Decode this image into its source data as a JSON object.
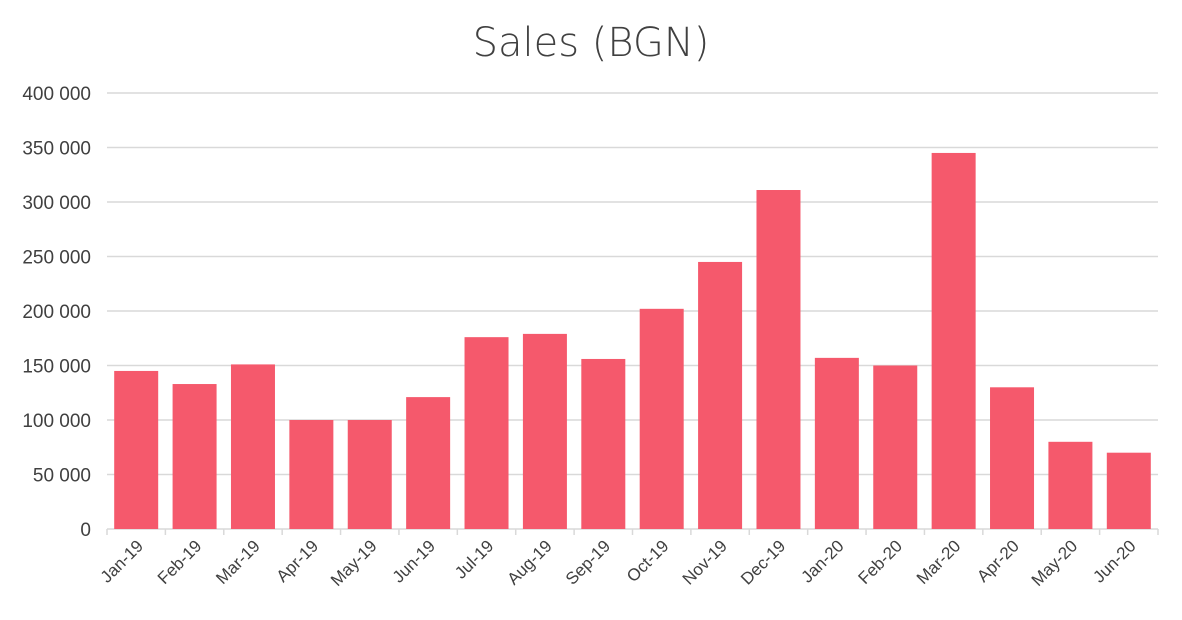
{
  "chart_data": {
    "type": "bar",
    "title": "Sales (BGN)",
    "xlabel": "",
    "ylabel": "",
    "categories": [
      "Jan-19",
      "Feb-19",
      "Mar-19",
      "Apr-19",
      "May-19",
      "Jun-19",
      "Jul-19",
      "Aug-19",
      "Sep-19",
      "Oct-19",
      "Nov-19",
      "Dec-19",
      "Jan-20",
      "Feb-20",
      "Mar-20",
      "Apr-20",
      "May-20",
      "Jun-20"
    ],
    "values": [
      145000,
      133000,
      151000,
      100000,
      100000,
      121000,
      176000,
      179000,
      156000,
      202000,
      245000,
      311000,
      157000,
      150000,
      345000,
      130000,
      80000,
      70000
    ],
    "ylim": [
      0,
      400000
    ],
    "yticks": [
      0,
      50000,
      100000,
      150000,
      200000,
      250000,
      300000,
      350000,
      400000
    ],
    "ytick_labels": [
      "0",
      "50 000",
      "100 000",
      "150 000",
      "200 000",
      "250 000",
      "300 000",
      "350 000",
      "400 000"
    ],
    "grid": true,
    "legend": "none",
    "bar_color": "#f5596c"
  }
}
